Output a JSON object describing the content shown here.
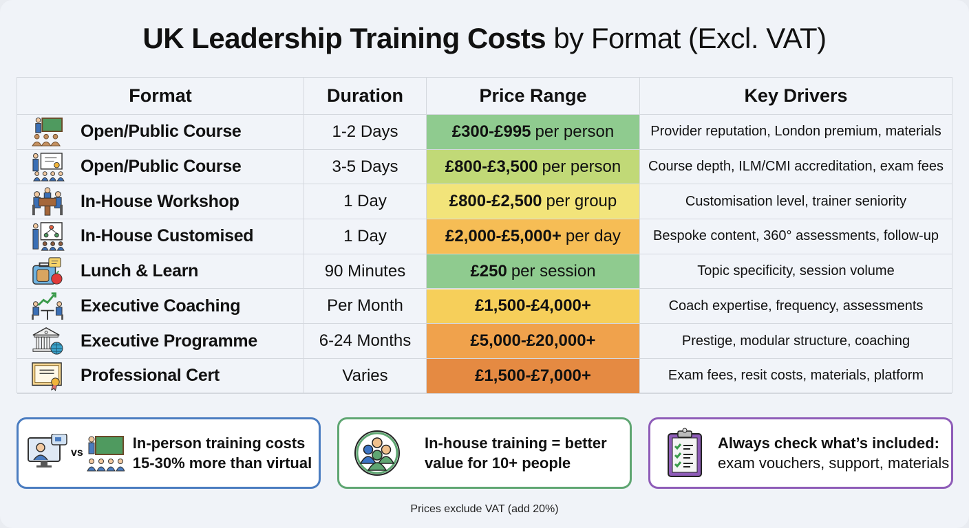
{
  "title": {
    "bold": "UK Leadership Training Costs",
    "light": "by Format (Excl. VAT)"
  },
  "table": {
    "headers": [
      "Format",
      "Duration",
      "Price Range",
      "Key Drivers"
    ],
    "rows": [
      {
        "icon": "classroom-teacher-icon",
        "format": "Open/Public Course",
        "duration": "1-2 Days",
        "price_bold": "£300-£995",
        "price_unit": "per person",
        "drivers": "Provider reputation, London premium, materials",
        "color": "#8fcb8f"
      },
      {
        "icon": "presentation-certificate-icon",
        "format": "Open/Public Course",
        "duration": "3-5 Days",
        "price_bold": "£800-£3,500",
        "price_unit": "per person",
        "drivers": "Course depth, ILM/CMI accreditation, exam fees",
        "color": "#c1d977"
      },
      {
        "icon": "meeting-table-icon",
        "format": "In-House Workshop",
        "duration": "1 Day",
        "price_bold": "£800-£2,500",
        "price_unit": "per group",
        "drivers": "Customisation level, trainer seniority",
        "color": "#f2e47a"
      },
      {
        "icon": "flowchart-presenter-icon",
        "format": "In-House Customised",
        "duration": "1 Day",
        "price_bold": "£2,000-£5,000+",
        "price_unit": "per day",
        "drivers": "Bespoke content, 360° assessments, follow-up",
        "color": "#f6bd55"
      },
      {
        "icon": "lunchbox-icon",
        "format": "Lunch & Learn",
        "duration": "90 Minutes",
        "price_bold": "£250",
        "price_unit": "per session",
        "drivers": "Topic specificity, session volume",
        "color": "#8fcb8f"
      },
      {
        "icon": "coaching-growth-icon",
        "format": "Executive Coaching",
        "duration": "Per Month",
        "price_bold": "£1,500-£4,000+",
        "price_unit": "",
        "drivers": "Coach expertise, frequency, assessments",
        "color": "#f6cf5a"
      },
      {
        "icon": "institution-globe-icon",
        "format": "Executive Programme",
        "duration": "6-24 Months",
        "price_bold": "£5,000-£20,000+",
        "price_unit": "",
        "drivers": "Prestige, modular structure, coaching",
        "color": "#f0a24c"
      },
      {
        "icon": "certificate-icon",
        "format": "Professional Cert",
        "duration": "Varies",
        "price_bold": "£1,500-£7,000+",
        "price_unit": "",
        "drivers": "Exam fees, resit costs, materials, platform",
        "color": "#e58a42"
      }
    ]
  },
  "callouts": [
    {
      "icon": "virtual-vs-inperson-icon",
      "vs": "vs",
      "bold": "In-person training costs",
      "bold2": "15-30% more than virtual",
      "border": "#4a7cc0"
    },
    {
      "icon": "team-group-icon",
      "bold": "In-house training = better",
      "bold2": "value for 10+ people",
      "border": "#5fa672"
    },
    {
      "icon": "clipboard-checklist-icon",
      "bold": "Always check what’s included:",
      "normal": "exam vouchers, support, materials",
      "border": "#8e5cb8"
    }
  ],
  "footnote": "Prices exclude VAT (add 20%)"
}
